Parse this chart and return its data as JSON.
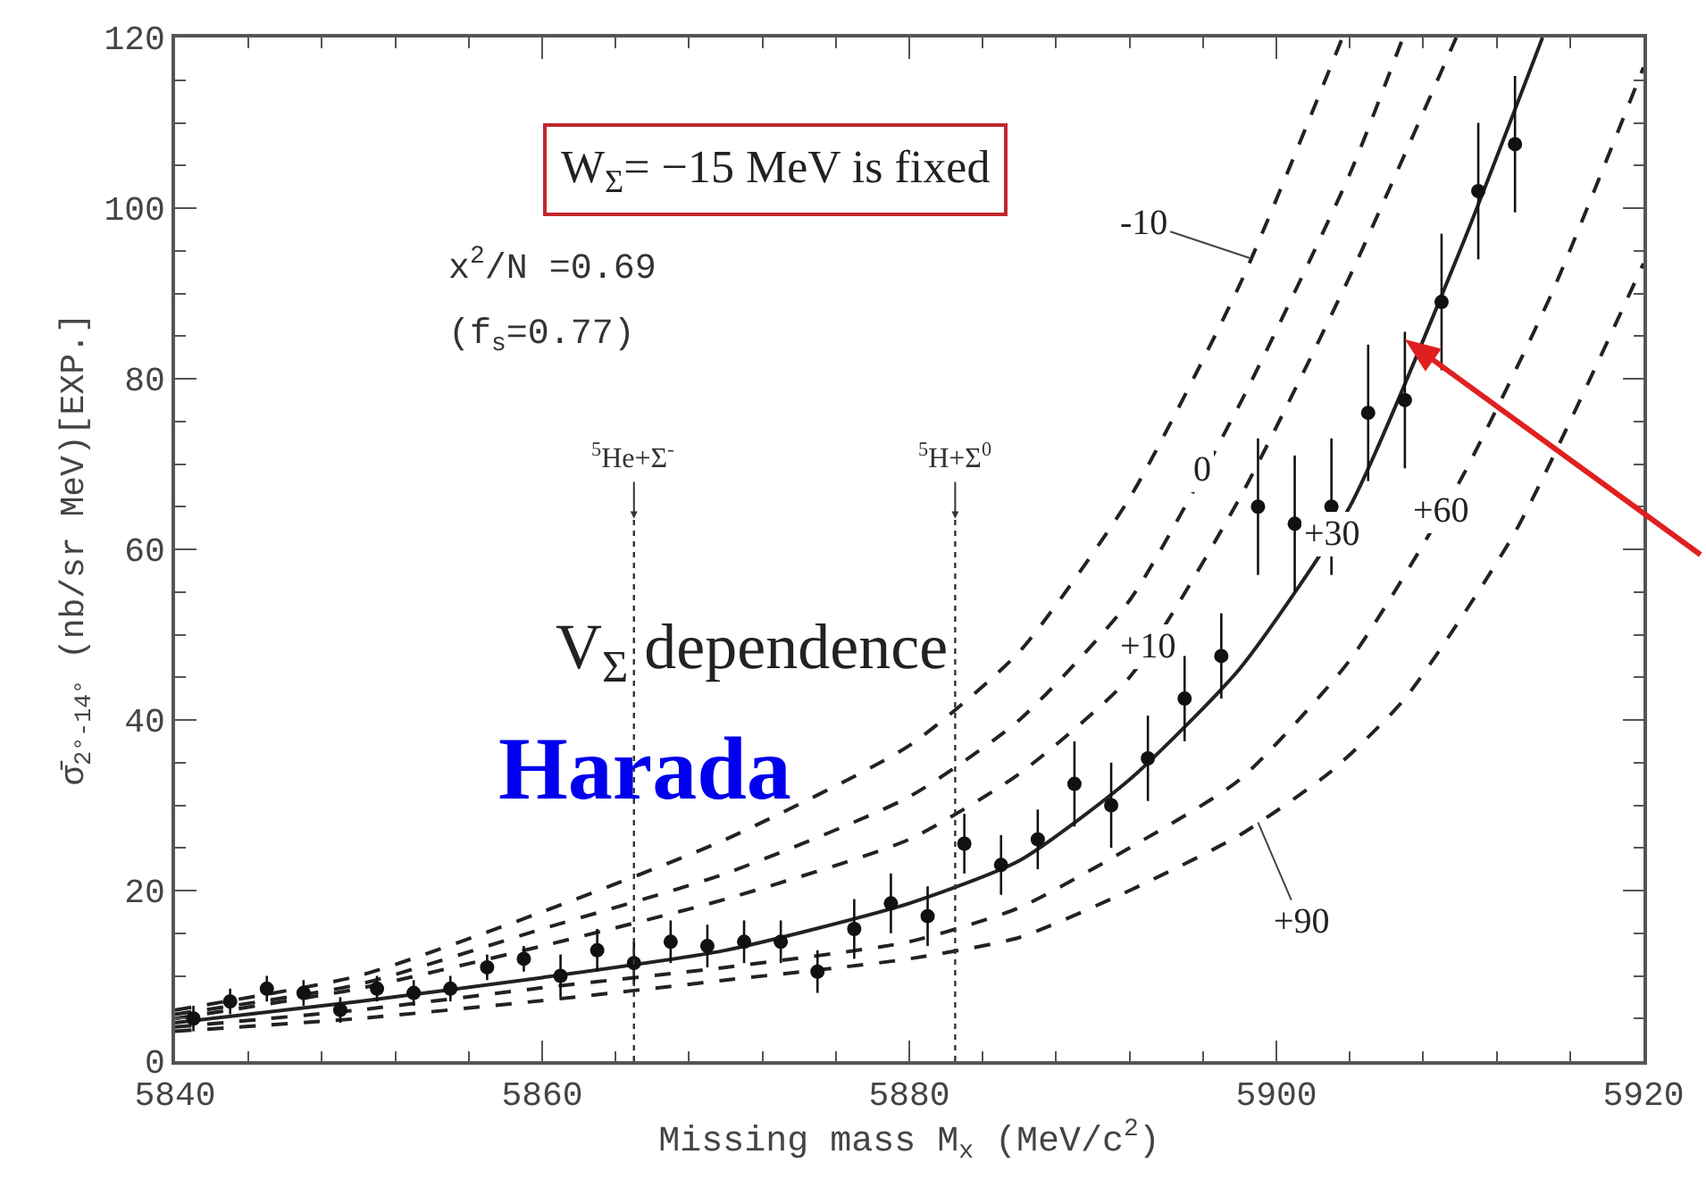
{
  "chart_data": {
    "type": "line",
    "xlabel": "Missing mass M$_{x}$ (MeV/c$^{2}$)",
    "ylabel": "σ̄$_{2°-14°}$ (nb/sr MeV)[EXP.]",
    "xlim": [
      5840,
      5920
    ],
    "xticks": [
      5840,
      5860,
      5880,
      5900,
      5920
    ],
    "ylim": [
      0,
      120
    ],
    "yticks": [
      0,
      20,
      40,
      60,
      80,
      100,
      120
    ],
    "series": [
      {
        "name": "-10",
        "line_style": "dashed",
        "color": "#222222",
        "x": [
          5840,
          5850,
          5860,
          5870,
          5880,
          5886,
          5892,
          5898,
          5903.6
        ],
        "values": [
          6,
          10,
          17.5,
          26,
          37,
          48,
          66,
          91,
          120
        ]
      },
      {
        "name": "0",
        "line_style": "dashed",
        "color": "#222222",
        "x": [
          5840,
          5850,
          5860,
          5870,
          5880,
          5886,
          5892,
          5898,
          5904,
          5906.9
        ],
        "values": [
          5.5,
          9,
          15.5,
          22,
          31,
          40,
          54,
          77,
          104,
          120
        ]
      },
      {
        "name": "+10",
        "line_style": "dashed",
        "color": "#222222",
        "x": [
          5840,
          5850,
          5860,
          5870,
          5880,
          5886,
          5892,
          5898,
          5904,
          5909.8
        ],
        "values": [
          5,
          8.5,
          13.5,
          19,
          26,
          33.7,
          45,
          66,
          92,
          120
        ]
      },
      {
        "name": "+30",
        "line_style": "solid",
        "color": "#222222",
        "x": [
          5840,
          5850,
          5860,
          5870,
          5880,
          5886,
          5892,
          5898,
          5904,
          5910,
          5914.5
        ],
        "values": [
          4.5,
          7,
          9.8,
          13,
          18.5,
          23.5,
          33,
          46,
          65,
          95,
          120
        ]
      },
      {
        "name": "+60",
        "line_style": "dashed",
        "color": "#222222",
        "x": [
          5840,
          5850,
          5860,
          5870,
          5880,
          5886,
          5892,
          5898,
          5904,
          5910,
          5915,
          5920
        ],
        "values": [
          4,
          6,
          8.6,
          11,
          14,
          18,
          25,
          33,
          47,
          68,
          90,
          116.5
        ]
      },
      {
        "name": "+90",
        "line_style": "dashed",
        "color": "#222222",
        "x": [
          5840,
          5850,
          5860,
          5870,
          5880,
          5886,
          5892,
          5898,
          5903,
          5907,
          5913,
          5920
        ],
        "values": [
          3.5,
          5,
          7.1,
          9.5,
          12,
          14.5,
          20,
          26.5,
          34,
          42.5,
          62,
          93.5
        ]
      },
      {
        "type": "scatter",
        "marker": "circle",
        "color": "#111111",
        "x": [
          5841,
          5843,
          5845,
          5847,
          5849,
          5851,
          5853,
          5855,
          5857,
          5859,
          5861,
          5863,
          5865,
          5867,
          5869,
          5871,
          5873,
          5875,
          5877,
          5879,
          5881,
          5883,
          5885,
          5887,
          5889,
          5891,
          5893,
          5895,
          5897,
          5899,
          5901,
          5903,
          5905,
          5907,
          5909,
          5911,
          5913
        ],
        "values": [
          5,
          7,
          8.5,
          8,
          6,
          8.5,
          8,
          8.5,
          11,
          12,
          10,
          13,
          11.5,
          14,
          13.5,
          14,
          14,
          10.5,
          15.5,
          18.5,
          17,
          25.5,
          23,
          26,
          32.5,
          30,
          35.5,
          42.5,
          47.5,
          65,
          63,
          65,
          76,
          77.5,
          89,
          102,
          107.5
        ],
        "errors": [
          1.5,
          1.5,
          1.5,
          1.5,
          1.5,
          1.5,
          1.5,
          1.5,
          1.5,
          1.5,
          2.5,
          2.5,
          2.5,
          2.5,
          2.5,
          2.5,
          2.5,
          2.5,
          3.5,
          3.5,
          3.5,
          3.5,
          3.5,
          3.5,
          5,
          5,
          5,
          5,
          5,
          8,
          8,
          8,
          8,
          8,
          8,
          8,
          8
        ]
      }
    ],
    "ref_lines": [
      {
        "axis": "x",
        "value": 5865,
        "label": "$^{5}$He+Σ$^{-}$",
        "line_style": "dotted"
      },
      {
        "axis": "x",
        "value": 5882.5,
        "label": "$^{5}$H+Σ$^{0}$",
        "line_style": "dotted"
      }
    ],
    "annotations": [
      "W$_{Σ}$= −15 MeV is fixed",
      "x$^{2}$/N =0.69",
      "(f$_{s}$=0.77)",
      "V$_{Σ}$ dependence",
      "Harada"
    ]
  }
}
